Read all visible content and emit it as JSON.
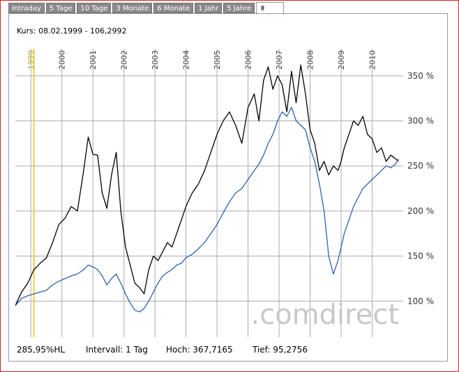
{
  "tabs": [
    {
      "label": "Intraday"
    },
    {
      "label": "5 Tage"
    },
    {
      "label": "10 Tage"
    },
    {
      "label": "3 Monate"
    },
    {
      "label": "6 Monate"
    },
    {
      "label": "1 Jahr"
    },
    {
      "label": "5 Jahre"
    },
    {
      "label": "∞"
    }
  ],
  "kurs_label": "Kurs: 08.02.1999 - 106,2992",
  "watermark": ".comdirect",
  "footer": {
    "change": "285,95%HL",
    "interval": "Intervall: 1 Tag",
    "high": "Hoch: 367,7165",
    "low": "Tief: 95,2756"
  },
  "colors": {
    "frame": "#e41c1c",
    "series_black": "#000000",
    "series_blue": "#2f5fae",
    "marker": "#e8d23a",
    "grid": "#aaaaaa"
  },
  "chart_data": {
    "type": "line",
    "ylim": [
      60,
      380
    ],
    "yticks": [
      100,
      150,
      200,
      250,
      300,
      350
    ],
    "ytick_labels": [
      "100 %",
      "150 %",
      "200 %",
      "250 %",
      "300 %",
      "350 %"
    ],
    "xlim": [
      1998.5,
      2011.0
    ],
    "year_ticks": [
      1999,
      2000,
      2001,
      2002,
      2003,
      2004,
      2005,
      2006,
      2007,
      2008,
      2009,
      2010
    ],
    "year_labels": [
      "1999",
      "2000",
      "2001",
      "2002",
      "2003",
      "2004",
      "2005",
      "2006",
      "2007",
      "2008",
      "2009",
      "2010"
    ],
    "highlight_x": 1999.1,
    "series": [
      {
        "x": [
          1998.5,
          1998.7,
          1998.9,
          1999.1,
          1999.3,
          1999.5,
          1999.7,
          1999.9,
          2000.1,
          2000.3,
          2000.5,
          2000.7,
          2000.85,
          2001.0,
          2001.15,
          2001.3,
          2001.45,
          2001.6,
          2001.75,
          2001.9,
          2002.05,
          2002.2,
          2002.35,
          2002.5,
          2002.65,
          2002.8,
          2002.95,
          2003.1,
          2003.25,
          2003.4,
          2003.55,
          2003.7,
          2003.85,
          2004.0,
          2004.2,
          2004.4,
          2004.6,
          2004.8,
          2005.0,
          2005.2,
          2005.4,
          2005.6,
          2005.8,
          2006.0,
          2006.2,
          2006.35,
          2006.5,
          2006.65,
          2006.8,
          2006.95,
          2007.1,
          2007.25,
          2007.4,
          2007.55,
          2007.7,
          2007.85,
          2008.0,
          2008.15,
          2008.3,
          2008.45,
          2008.6,
          2008.75,
          2008.9,
          2009.0,
          2009.1,
          2009.25,
          2009.4,
          2009.55,
          2009.7,
          2009.85,
          2010.0,
          2010.15,
          2010.3,
          2010.45,
          2010.6,
          2010.75,
          2010.85
        ],
        "y": [
          95,
          110,
          120,
          135,
          142,
          148,
          165,
          185,
          192,
          205,
          200,
          245,
          282,
          263,
          262,
          220,
          203,
          240,
          265,
          200,
          160,
          140,
          120,
          115,
          108,
          135,
          150,
          145,
          155,
          165,
          160,
          175,
          190,
          205,
          220,
          230,
          245,
          265,
          285,
          300,
          310,
          295,
          275,
          315,
          330,
          300,
          345,
          360,
          335,
          350,
          340,
          310,
          355,
          320,
          362,
          330,
          290,
          275,
          245,
          255,
          240,
          250,
          245,
          255,
          270,
          285,
          300,
          295,
          305,
          285,
          280,
          265,
          270,
          255,
          262,
          258,
          255
        ]
      },
      {
        "x": [
          1998.5,
          1998.7,
          1998.9,
          1999.1,
          1999.3,
          1999.5,
          1999.7,
          1999.9,
          2000.1,
          2000.3,
          2000.5,
          2000.7,
          2000.85,
          2001.0,
          2001.15,
          2001.3,
          2001.45,
          2001.6,
          2001.75,
          2001.9,
          2002.05,
          2002.2,
          2002.35,
          2002.5,
          2002.65,
          2002.8,
          2002.95,
          2003.1,
          2003.25,
          2003.4,
          2003.55,
          2003.7,
          2003.85,
          2004.0,
          2004.2,
          2004.4,
          2004.6,
          2004.8,
          2005.0,
          2005.2,
          2005.4,
          2005.6,
          2005.8,
          2006.0,
          2006.2,
          2006.35,
          2006.5,
          2006.65,
          2006.8,
          2006.95,
          2007.1,
          2007.25,
          2007.4,
          2007.55,
          2007.7,
          2007.85,
          2008.0,
          2008.15,
          2008.3,
          2008.45,
          2008.6,
          2008.75,
          2008.9,
          2009.0,
          2009.1,
          2009.25,
          2009.4,
          2009.55,
          2009.7,
          2009.85,
          2010.0,
          2010.15,
          2010.3,
          2010.45,
          2010.6,
          2010.75,
          2010.85
        ],
        "y": [
          95,
          103,
          106,
          108,
          110,
          112,
          118,
          122,
          125,
          128,
          130,
          135,
          140,
          138,
          135,
          128,
          118,
          125,
          130,
          120,
          108,
          98,
          90,
          88,
          92,
          100,
          110,
          120,
          128,
          132,
          135,
          140,
          142,
          148,
          152,
          158,
          165,
          175,
          185,
          198,
          210,
          220,
          225,
          235,
          245,
          252,
          262,
          275,
          285,
          300,
          310,
          305,
          315,
          300,
          295,
          290,
          270,
          255,
          230,
          200,
          150,
          130,
          145,
          160,
          175,
          190,
          205,
          215,
          225,
          230,
          235,
          240,
          245,
          250,
          248,
          252,
          258
        ]
      }
    ]
  }
}
